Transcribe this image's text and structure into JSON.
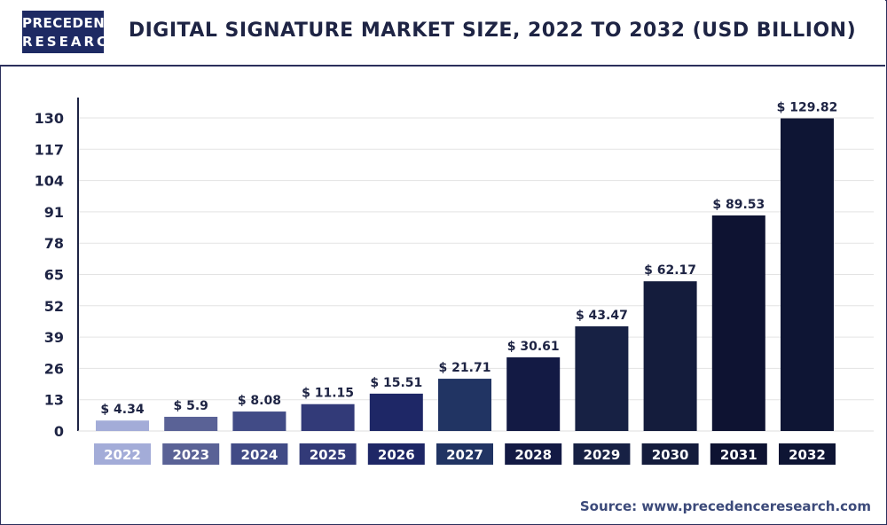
{
  "header": {
    "logo_line1": "PRECEDENCE",
    "logo_line2": "RESEARCH",
    "title": "DIGITAL SIGNATURE MARKET SIZE, 2022 TO 2032 (USD BILLION)"
  },
  "footer": {
    "source_label": "Source:",
    "source_url": "www.precedenceresearch.com"
  },
  "chart_data": {
    "type": "bar",
    "title": "DIGITAL SIGNATURE MARKET SIZE, 2022 TO 2032 (USD BILLION)",
    "xlabel": "",
    "ylabel": "",
    "categories": [
      "2022",
      "2023",
      "2024",
      "2025",
      "2026",
      "2027",
      "2028",
      "2029",
      "2030",
      "2031",
      "2032"
    ],
    "values": [
      4.34,
      5.9,
      8.08,
      11.15,
      15.51,
      21.71,
      30.61,
      43.47,
      62.17,
      89.53,
      129.82
    ],
    "value_labels": [
      "$ 4.34",
      "$ 5.9",
      "$ 8.08",
      "$ 11.15",
      "$ 15.51",
      "$ 21.71",
      "$ 30.61",
      "$ 43.47",
      "$ 62.17",
      "$ 89.53",
      "$ 129.82"
    ],
    "y_ticks": [
      0,
      13,
      26,
      39,
      52,
      65,
      78,
      91,
      104,
      117,
      130
    ],
    "ylim": [
      0,
      130
    ],
    "grid": true,
    "colors": [
      "#a3acd8",
      "#5a6296",
      "#414b86",
      "#323a78",
      "#1e2766",
      "#213463",
      "#131a44",
      "#172144",
      "#141c3c",
      "#0e1332",
      "#0e1534"
    ]
  }
}
